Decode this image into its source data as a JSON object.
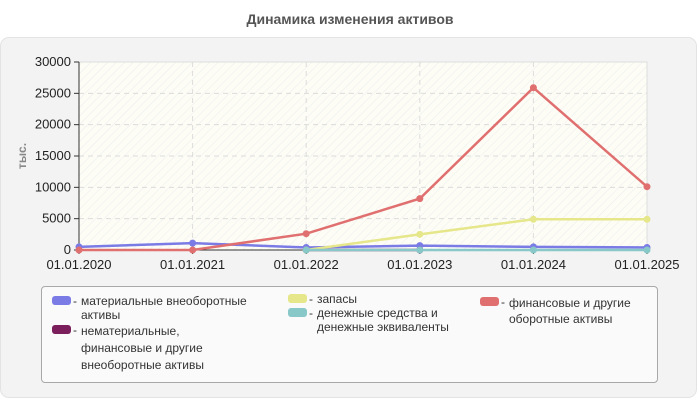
{
  "title": "Динамика изменения активов",
  "chart_data": {
    "type": "line",
    "title": "Динамика изменения активов",
    "xlabel": "",
    "ylabel": "тыс.",
    "ylim": [
      0,
      30000
    ],
    "yticks": [
      0,
      5000,
      10000,
      15000,
      20000,
      25000,
      30000
    ],
    "grid": true,
    "legend_position": "bottom",
    "categories": [
      "01.01.2020",
      "01.01.2021",
      "01.01.2022",
      "01.01.2023",
      "01.01.2024",
      "01.01.2025"
    ],
    "series": [
      {
        "name": "материальные внеоборотные активы",
        "color": "#7b7be6",
        "values": [
          500,
          1100,
          400,
          700,
          500,
          400
        ]
      },
      {
        "name": "нематериальные, финансовые и другие внеоборотные активы",
        "color": "#7a1f5c",
        "values": [
          null,
          null,
          0,
          0,
          null,
          null
        ]
      },
      {
        "name": "запасы",
        "color": "#e6e68a",
        "values": [
          null,
          null,
          0,
          2500,
          4900,
          4900
        ]
      },
      {
        "name": "денежные средства и денежные эквиваленты",
        "color": "#88c8c8",
        "values": [
          null,
          null,
          0,
          0,
          0,
          0
        ]
      },
      {
        "name": "финансовые и другие оборотные активы",
        "color": "#e07070",
        "values": [
          0,
          0,
          2600,
          8200,
          25900,
          10100
        ]
      }
    ]
  },
  "legend": {
    "items": [
      {
        "label": "материальные внеоборотные активы",
        "color": "#7b7be6"
      },
      {
        "label": "нематериальные, финансовые и другие внеоборотные активы",
        "color": "#7a1f5c"
      },
      {
        "label": "запасы",
        "color": "#e6e68a"
      },
      {
        "label": "денежные средства и денежные эквиваленты",
        "color": "#88c8c8"
      },
      {
        "label": "финансовые и другие оборотные активы",
        "color": "#e07070"
      }
    ]
  }
}
